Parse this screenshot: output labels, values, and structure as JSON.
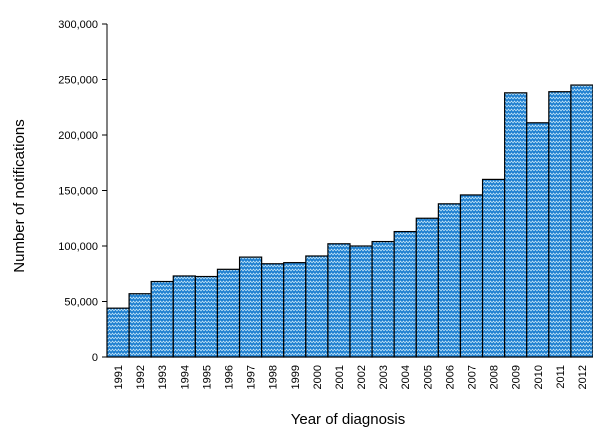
{
  "chart_data": {
    "type": "bar",
    "title": "",
    "xlabel": "Year of diagnosis",
    "ylabel": "Number of notifications",
    "categories": [
      "1991",
      "1992",
      "1993",
      "1994",
      "1995",
      "1996",
      "1997",
      "1998",
      "1999",
      "2000",
      "2001",
      "2002",
      "2003",
      "2004",
      "2005",
      "2006",
      "2007",
      "2008",
      "2009",
      "2010",
      "2011",
      "2012"
    ],
    "values": [
      44000,
      57000,
      68000,
      73000,
      72500,
      79000,
      90000,
      84000,
      85000,
      91000,
      102000,
      100000,
      104000,
      113000,
      125000,
      138000,
      146000,
      160000,
      238000,
      211000,
      239000,
      245000
    ],
    "ylim": [
      0,
      300000
    ],
    "yticks": [
      0,
      50000,
      100000,
      150000,
      200000,
      250000,
      300000
    ],
    "ytick_labels": [
      "0",
      "50,000",
      "100,000",
      "150,000",
      "200,000",
      "250,000",
      "300,000"
    ],
    "grid": false,
    "legend": "none",
    "bar_color": "#1e7fd0",
    "bar_pattern_color": "#bfe3f7",
    "bar_edge_color": "#000000"
  }
}
